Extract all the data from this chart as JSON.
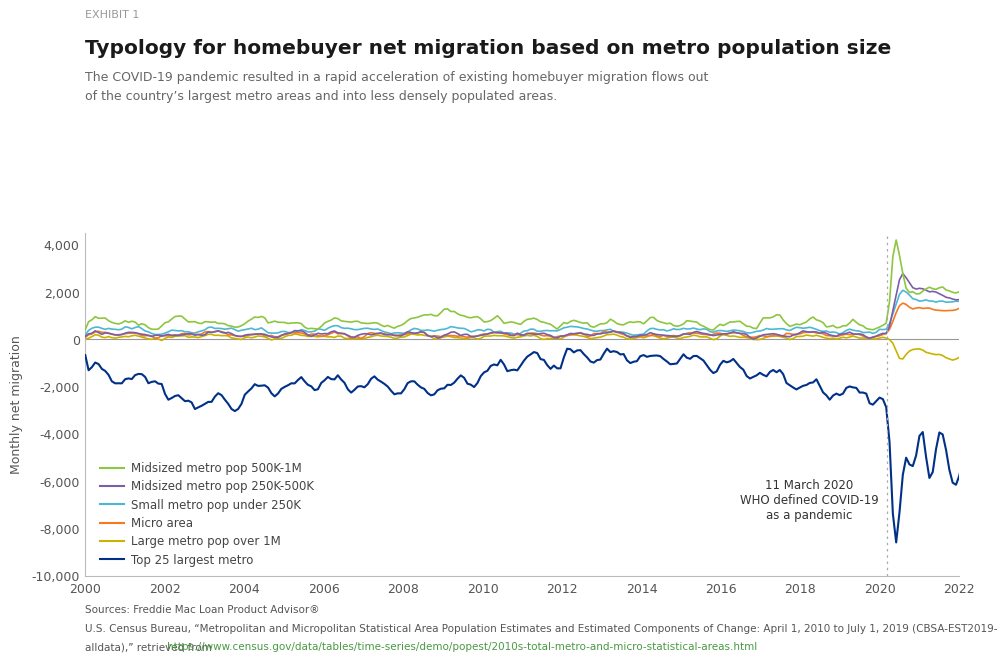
{
  "title": "Typology for homebuyer net migration based on metro population size",
  "exhibit_label": "EXHIBIT 1",
  "subtitle": "The COVID-19 pandemic resulted in a rapid acceleration of existing homebuyer migration flows out\nof the country’s largest metro areas and into less densely populated areas.",
  "ylabel": "Monthly net migration",
  "source_line1": "Sources: Freddie Mac Loan Product Advisor®",
  "source_line2": "U.S. Census Bureau, “Metropolitan and Micropolitan Statistical Area Population Estimates and Estimated Components of Change: April 1, 2010 to July 1, 2019 (CBSA-EST2019-",
  "source_line3": "alldata),” retrieved from ",
  "source_url": "https://www.census.gov/data/tables/time-series/demo/popest/2010s-total-metro-and-micro-statistical-areas.html",
  "source_line3_end": ".",
  "covid_label": "11 March 2020\nWHO defined COVID-19\nas a pandemic",
  "covid_x": 2020.17,
  "xmin": 2000,
  "xmax": 2022,
  "ymin": -10000,
  "ymax": 4500,
  "yticks": [
    -10000,
    -8000,
    -6000,
    -4000,
    -2000,
    0,
    2000,
    4000
  ],
  "xticks": [
    2000,
    2002,
    2004,
    2006,
    2008,
    2010,
    2012,
    2014,
    2016,
    2018,
    2020,
    2022
  ],
  "background_color": "#ffffff",
  "series": {
    "midsized_500k_1m": {
      "label": "Midsized metro pop 500K-1M",
      "color": "#8dc63f",
      "linewidth": 1.2,
      "zorder": 5
    },
    "midsized_250k_500k": {
      "label": "Midsized metro pop 250K-500K",
      "color": "#7b5ea7",
      "linewidth": 1.2,
      "zorder": 4
    },
    "small_under_250k": {
      "label": "Small metro pop under 250K",
      "color": "#4db8d4",
      "linewidth": 1.2,
      "zorder": 3
    },
    "micro_area": {
      "label": "Micro area",
      "color": "#f47920",
      "linewidth": 1.2,
      "zorder": 3
    },
    "large_over_1m": {
      "label": "Large metro pop over 1M",
      "color": "#c8b400",
      "linewidth": 1.2,
      "zorder": 2
    },
    "top25_largest": {
      "label": "Top 25 largest metro",
      "color": "#003087",
      "linewidth": 1.5,
      "zorder": 6
    }
  }
}
